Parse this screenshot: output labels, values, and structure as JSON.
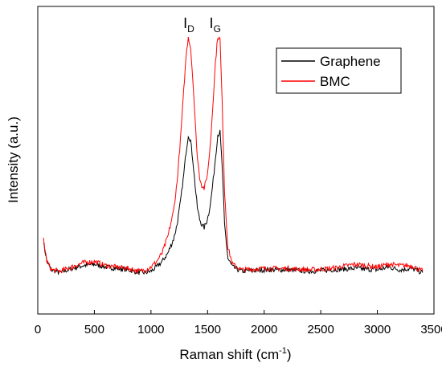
{
  "chart_data": {
    "type": "line",
    "xlabel_main": "Raman shift (cm",
    "xlabel_sup": "-1",
    "xlabel_end": ")",
    "ylabel": "Intensity (a.u.)",
    "xlim": [
      0,
      3500
    ],
    "ylim": [
      0,
      1
    ],
    "y_ticks_labeled": false,
    "xticks": [
      0,
      500,
      1000,
      1500,
      2000,
      2500,
      3000,
      3500
    ],
    "xtick_labels": [
      "0",
      "500",
      "1000",
      "1500",
      "2000",
      "2500",
      "3000",
      "3500"
    ],
    "legend_position": "top-right",
    "annotations": [
      {
        "main": "I",
        "sub": "D",
        "x": 1350
      },
      {
        "main": "I",
        "sub": "G",
        "x": 1580
      }
    ],
    "series": [
      {
        "name": "Graphene",
        "color": "#000000",
        "x": [
          50,
          80,
          120,
          200,
          300,
          400,
          500,
          600,
          700,
          800,
          900,
          950,
          1000,
          1050,
          1100,
          1150,
          1200,
          1230,
          1260,
          1290,
          1310,
          1330,
          1350,
          1370,
          1390,
          1410,
          1430,
          1450,
          1470,
          1490,
          1510,
          1530,
          1550,
          1570,
          1590,
          1610,
          1630,
          1650,
          1680,
          1720,
          1800,
          2000,
          2200,
          2400,
          2600,
          2800,
          3000,
          3100,
          3200,
          3300,
          3400
        ],
        "y": [
          0.24,
          0.17,
          0.14,
          0.13,
          0.145,
          0.155,
          0.16,
          0.15,
          0.145,
          0.14,
          0.13,
          0.13,
          0.135,
          0.15,
          0.17,
          0.2,
          0.25,
          0.3,
          0.38,
          0.48,
          0.56,
          0.62,
          0.6,
          0.53,
          0.44,
          0.36,
          0.32,
          0.3,
          0.29,
          0.31,
          0.34,
          0.39,
          0.46,
          0.54,
          0.62,
          0.63,
          0.5,
          0.3,
          0.18,
          0.15,
          0.135,
          0.14,
          0.14,
          0.135,
          0.14,
          0.145,
          0.14,
          0.15,
          0.14,
          0.145,
          0.13
        ]
      },
      {
        "name": "BMC",
        "color": "#ff0000",
        "x": [
          50,
          80,
          120,
          200,
          300,
          400,
          500,
          600,
          700,
          800,
          900,
          950,
          1000,
          1050,
          1100,
          1150,
          1200,
          1230,
          1260,
          1290,
          1310,
          1330,
          1350,
          1370,
          1390,
          1410,
          1430,
          1450,
          1470,
          1490,
          1510,
          1530,
          1550,
          1570,
          1590,
          1610,
          1630,
          1650,
          1680,
          1720,
          1800,
          2000,
          2200,
          2400,
          2600,
          2800,
          3000,
          3100,
          3200,
          3300,
          3400
        ],
        "y": [
          0.25,
          0.17,
          0.14,
          0.135,
          0.15,
          0.165,
          0.17,
          0.155,
          0.15,
          0.145,
          0.135,
          0.14,
          0.15,
          0.17,
          0.2,
          0.26,
          0.35,
          0.45,
          0.6,
          0.78,
          0.9,
          0.97,
          0.93,
          0.82,
          0.67,
          0.54,
          0.47,
          0.44,
          0.43,
          0.46,
          0.52,
          0.62,
          0.75,
          0.88,
          0.97,
          0.96,
          0.72,
          0.42,
          0.22,
          0.16,
          0.14,
          0.145,
          0.145,
          0.14,
          0.145,
          0.16,
          0.15,
          0.16,
          0.155,
          0.155,
          0.135
        ]
      }
    ]
  }
}
